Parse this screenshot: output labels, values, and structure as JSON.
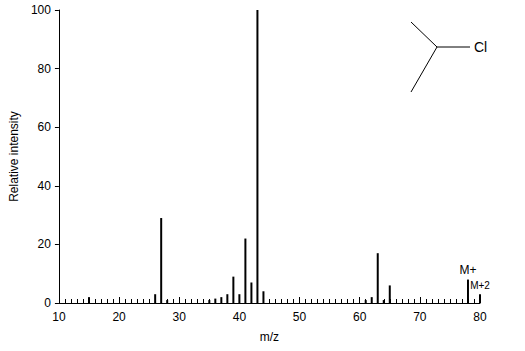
{
  "chart_data": {
    "type": "bar",
    "x_label": "m/z",
    "y_label": "Relative intensity",
    "x": [
      15,
      26,
      27,
      28,
      35,
      36,
      37,
      38,
      39,
      40,
      41,
      42,
      43,
      44,
      61,
      62,
      63,
      64,
      65,
      78,
      80
    ],
    "values": [
      2,
      3,
      29,
      1,
      1,
      1.5,
      2,
      3,
      9,
      3,
      22,
      7,
      100,
      4,
      1,
      2,
      17,
      1,
      6,
      8,
      3
    ],
    "color": "#000000",
    "xlim": [
      10,
      80
    ],
    "xticks": [
      10,
      20,
      30,
      40,
      50,
      60,
      70,
      80
    ],
    "ylim": [
      0,
      100
    ],
    "yticks": [
      0,
      20,
      40,
      60,
      80,
      100
    ],
    "grid": false,
    "annotations": [
      {
        "text": "M+",
        "x": 78
      },
      {
        "text": "M+2",
        "x": 80
      }
    ],
    "structure_label": "Cl"
  }
}
